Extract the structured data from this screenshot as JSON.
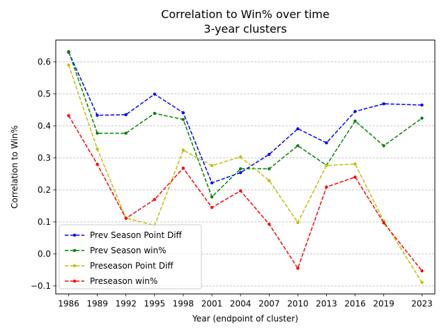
{
  "chart_data": {
    "type": "line",
    "title": "Correlation to Win% over time",
    "subtitle": "3-year clusters",
    "xlabel": "Year (endpoint of cluster)",
    "ylabel": "Correlation to Win%",
    "x": [
      1986,
      1989,
      1992,
      1995,
      1998,
      2001,
      2004,
      2007,
      2010,
      2013,
      2016,
      2019,
      2023
    ],
    "xlim": [
      1984.65,
      1925.0
    ],
    "ylim": [
      -0.125,
      0.668
    ],
    "yticks": [
      -0.1,
      0.0,
      0.1,
      0.2,
      0.3,
      0.4,
      0.5,
      0.6
    ],
    "ytick_labels": [
      "−0.1",
      "0.0",
      "0.1",
      "0.2",
      "0.3",
      "0.4",
      "0.5",
      "0.6"
    ],
    "grid": "y-dashed",
    "legend_position": "lower-left",
    "series": [
      {
        "name": "Prev Season Point Diff",
        "color": "#0000ff",
        "values": [
          0.63,
          0.433,
          0.435,
          0.499,
          0.441,
          0.222,
          0.254,
          0.311,
          0.391,
          0.347,
          0.445,
          0.469,
          0.465
        ]
      },
      {
        "name": "Prev Season win%",
        "color": "#008000",
        "values": [
          0.632,
          0.377,
          0.377,
          0.439,
          0.42,
          0.178,
          0.266,
          0.266,
          0.338,
          0.277,
          0.415,
          0.338,
          0.424
        ]
      },
      {
        "name": "Preseason Point Diff",
        "color": "#bfbf00",
        "values": [
          0.59,
          0.328,
          0.112,
          0.089,
          0.324,
          0.276,
          0.303,
          0.229,
          0.098,
          0.276,
          0.281,
          0.103,
          -0.089
        ]
      },
      {
        "name": "Preseason win%",
        "color": "#ff0000",
        "values": [
          0.432,
          0.28,
          0.111,
          0.17,
          0.268,
          0.145,
          0.197,
          0.093,
          -0.045,
          0.209,
          0.24,
          0.097,
          -0.053
        ]
      }
    ]
  }
}
